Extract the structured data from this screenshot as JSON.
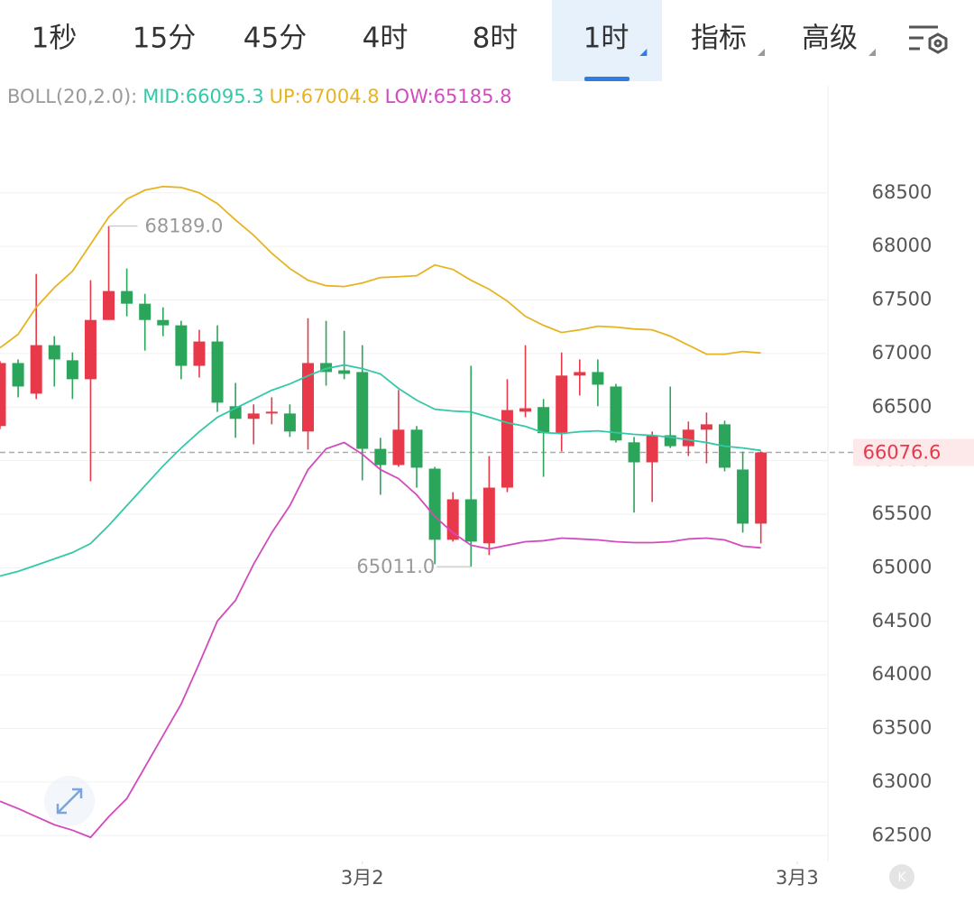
{
  "tabs": [
    {
      "label": "1秒"
    },
    {
      "label": "15分"
    },
    {
      "label": "45分"
    },
    {
      "label": "4时"
    },
    {
      "label": "8时"
    },
    {
      "label": "1时",
      "active": true,
      "menu": true
    },
    {
      "label": "指标",
      "menu": true
    },
    {
      "label": "高级",
      "menu": true
    }
  ],
  "chart_data": {
    "type": "candlestick",
    "indicator": "BOLL(20,2.0):",
    "up_color": "#e8394a",
    "down_color": "#2aa55a",
    "open": [
      66323,
      66911,
      66625,
      67078,
      66937,
      66760,
      67313,
      67583,
      67465,
      67313,
      67263,
      66885,
      67112,
      66508,
      66390,
      66440,
      66440,
      66272,
      66911,
      66843,
      66827,
      66110,
      65959,
      66289,
      65925,
      65261,
      65639,
      65228,
      65748,
      66457,
      66500,
      66256,
      66794,
      66827,
      66692,
      66171,
      65984,
      66237,
      66135,
      66289,
      66339,
      65917,
      65412
    ],
    "high": [
      66928,
      66945,
      67743,
      67162,
      67010,
      67684,
      68189,
      67793,
      67557,
      67431,
      67305,
      67221,
      67263,
      66725,
      66525,
      66591,
      66525,
      67330,
      67305,
      67212,
      67078,
      66213,
      66659,
      66323,
      65942,
      65706,
      66885,
      66043,
      66760,
      67078,
      66575,
      67010,
      66945,
      66945,
      66717,
      66221,
      66272,
      66692,
      66365,
      66449,
      66373,
      66085,
      66085
    ],
    "low": [
      66295,
      66591,
      66575,
      66692,
      66575,
      65807,
      67313,
      67347,
      67027,
      67162,
      66760,
      66776,
      66455,
      66213,
      66152,
      66339,
      66221,
      66102,
      66700,
      66760,
      65816,
      65681,
      65942,
      65748,
      65033,
      65244,
      65011,
      65118,
      65706,
      66405,
      65849,
      66085,
      66608,
      66508,
      66169,
      65515,
      65614,
      66118,
      66043,
      65975,
      65900,
      65328,
      65227
    ],
    "close": [
      66911,
      66692,
      67078,
      66945,
      66760,
      67313,
      67583,
      67465,
      67313,
      67263,
      66885,
      67112,
      66541,
      66390,
      66440,
      66457,
      66272,
      66911,
      66827,
      66810,
      66110,
      65959,
      66289,
      65934,
      65261,
      65639,
      65244,
      65748,
      66472,
      66489,
      66256,
      66794,
      66827,
      66709,
      66188,
      65984,
      66237,
      66135,
      66289,
      66339,
      65934,
      65412,
      66076.6
    ],
    "series": [
      {
        "name": "MID:66095.3",
        "color": "#33c9a8",
        "values": [
          64923,
          64966,
          65024,
          65083,
          65142,
          65226,
          65395,
          65580,
          65765,
          65950,
          66118,
          66270,
          66405,
          66489,
          66573,
          66657,
          66716,
          66792,
          66859,
          66893,
          66859,
          66809,
          66674,
          66564,
          66480,
          66463,
          66455,
          66405,
          66354,
          66320,
          66261,
          66253,
          66270,
          66278,
          66261,
          66245,
          66236,
          66219,
          66194,
          66169,
          66135,
          66118,
          66095.3
        ]
      },
      {
        "name": "UP:67004.8",
        "color": "#e6b422",
        "values": [
          67053,
          67179,
          67431,
          67616,
          67768,
          68020,
          68273,
          68441,
          68525,
          68559,
          68550,
          68500,
          68399,
          68247,
          68104,
          67936,
          67793,
          67684,
          67633,
          67625,
          67658,
          67709,
          67717,
          67726,
          67827,
          67785,
          67684,
          67600,
          67490,
          67347,
          67263,
          67196,
          67221,
          67255,
          67246,
          67229,
          67221,
          67162,
          67078,
          66994,
          66994,
          67019,
          67004.8
        ]
      },
      {
        "name": "LOW:65185.8",
        "color": "#d24bbd",
        "values": [
          62820,
          62752,
          62676,
          62601,
          62550,
          62483,
          62676,
          62845,
          63139,
          63434,
          63728,
          64107,
          64503,
          64696,
          65033,
          65327,
          65580,
          65916,
          66110,
          66169,
          66060,
          65916,
          65832,
          65681,
          65479,
          65327,
          65210,
          65176,
          65210,
          65243,
          65252,
          65277,
          65269,
          65260,
          65243,
          65235,
          65235,
          65243,
          65269,
          65277,
          65260,
          65201,
          65185.8
        ]
      }
    ],
    "annotations": [
      {
        "text": "68189.0",
        "candle": 6,
        "at": "high"
      },
      {
        "text": "65011.0",
        "candle": 26,
        "at": "low"
      }
    ],
    "last_price": 66076.6,
    "xlim": [
      0,
      45.7
    ],
    "xticks": [
      {
        "value": 20,
        "label": "3月2"
      },
      {
        "value": 44,
        "label": "3月3"
      }
    ],
    "ylim": [
      62300,
      69500
    ],
    "yticks": [
      62500,
      63000,
      63500,
      64000,
      64500,
      65000,
      65500,
      66000,
      66500,
      67000,
      67500,
      68000,
      68500
    ],
    "grid": true
  }
}
